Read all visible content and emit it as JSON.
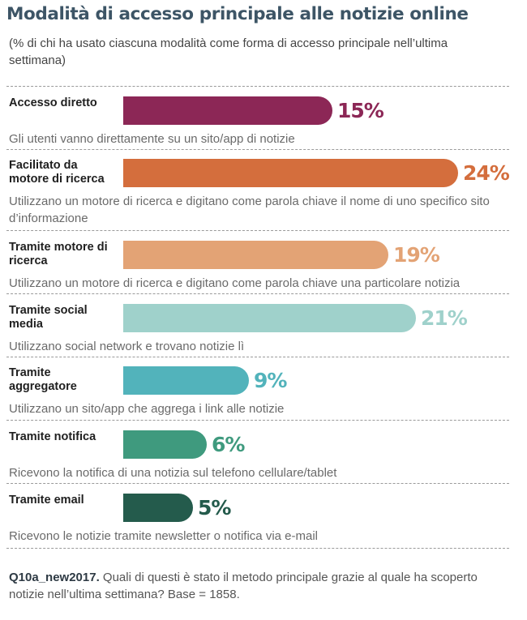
{
  "header": {
    "title": "Modalità di accesso principale alle notizie online",
    "subtitle": "(% di chi ha usato ciascuna modalità come forma di accesso principale nell’ultima settimana)"
  },
  "chart_data": {
    "type": "bar",
    "orientation": "horizontal",
    "title": "Modalità di accesso principale alle notizie online",
    "subtitle": "(% di chi ha usato ciascuna modalità come forma di accesso principale nell’ultima settimana)",
    "unit": "%",
    "categories": [
      {
        "label": "Accesso diretto",
        "value": 15,
        "value_label": "15%",
        "color": "#8c2756",
        "description": "Gli utenti vanno direttamente su un sito/app di notizie"
      },
      {
        "label": "Facilitato da motore di ricerca",
        "value": 24,
        "value_label": "24%",
        "color": "#d46e3d",
        "description": "Utilizzano un motore di ricerca e digitano come parola chiave il nome di uno specifico sito d’informazione"
      },
      {
        "label": "Tramite motore di ricerca",
        "value": 19,
        "value_label": "19%",
        "color": "#e3a375",
        "description": "Utilizzano un motore di ricerca e digitano come parola chiave una particolare notizia"
      },
      {
        "label": "Tramite social media",
        "value": 21,
        "value_label": "21%",
        "color": "#9fd1cb",
        "description": "Utilizzano social network e trovano notizie lì"
      },
      {
        "label": "Tramite aggregatore",
        "value": 9,
        "value_label": "9%",
        "color": "#52b3bb",
        "description": "Utilizzano un sito/app che aggrega i link alle notizie"
      },
      {
        "label": "Tramite notifica",
        "value": 6,
        "value_label": "6%",
        "color": "#3f9a7e",
        "description": "Ricevono la notifica di una notizia sul telefono cellulare/tablet"
      },
      {
        "label": "Tramite email",
        "value": 5,
        "value_label": "5%",
        "color": "#245b4c",
        "description": "Ricevono le notizie tramite newsletter o notifica via e-mail"
      }
    ],
    "xlim": [
      0,
      24
    ],
    "grid": false,
    "legend": "none"
  },
  "footnote": {
    "code": "Q10a_new2017.",
    "text": " Quali di questi è stato il metodo principale grazie al quale ha scoperto notizie nell’ultima settimana? Base = 1858."
  }
}
